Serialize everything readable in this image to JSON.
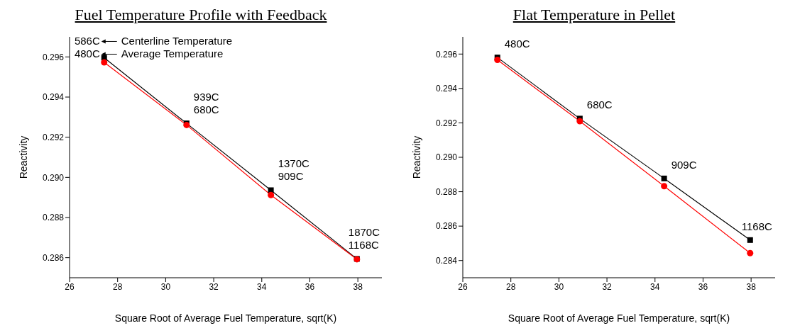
{
  "chart_data": [
    {
      "type": "line",
      "title": "Fuel Temperature Profile with Feedback",
      "xlabel": "Square Root of Average Fuel Temperature, sqrt(K)",
      "ylabel": "Reactivity",
      "x": [
        27.44,
        30.87,
        34.38,
        37.96
      ],
      "series": [
        {
          "color": "#000000",
          "marker": "square",
          "values": [
            0.29596,
            0.29269,
            0.28936,
            0.28594
          ]
        },
        {
          "color": "#ff0000",
          "marker": "circle",
          "values": [
            0.29573,
            0.29261,
            0.28912,
            0.28592
          ]
        }
      ],
      "xlim": [
        26,
        39
      ],
      "xticks": [
        26,
        28,
        30,
        32,
        34,
        36,
        38
      ],
      "ylim": [
        0.285,
        0.297
      ],
      "yticks": [
        0.286,
        0.288,
        {
          "value": 0.29,
          "label": "0.290"
        },
        0.292,
        0.294,
        0.296
      ],
      "grid": false,
      "line_style": "solid",
      "annotations": [
        {
          "text": "586C",
          "x": 27.44,
          "y": 0.29596
        },
        {
          "text": "480C",
          "x": 27.44,
          "y": 0.29596
        },
        "Centerline Temperature",
        "Average Temperature",
        {
          "text": "939C",
          "x": 30.87,
          "y": 0.29269
        },
        {
          "text": "680C",
          "x": 30.87,
          "y": 0.29269
        },
        {
          "text": "1370C",
          "x": 34.38,
          "y": 0.28936
        },
        {
          "text": "909C",
          "x": 34.38,
          "y": 0.28936
        },
        {
          "text": "1870C",
          "x": 37.96,
          "y": 0.28594
        },
        {
          "text": "1168C",
          "x": 37.96,
          "y": 0.28594
        }
      ]
    },
    {
      "type": "line",
      "title": "Flat Temperature in Pellet",
      "xlabel": "Square Root of Average Fuel Temperature, sqrt(K)",
      "ylabel": "Reactivity",
      "x": [
        27.44,
        30.87,
        34.38,
        37.96
      ],
      "series": [
        {
          "color": "#000000",
          "marker": "square",
          "values": [
            0.2958,
            0.29225,
            0.28877,
            0.28519
          ]
        },
        {
          "color": "#ff0000",
          "marker": "circle",
          "values": [
            0.29566,
            0.2921,
            0.28832,
            0.28443
          ]
        }
      ],
      "xlim": [
        26,
        39
      ],
      "xticks": [
        26,
        28,
        30,
        32,
        34,
        36,
        38
      ],
      "ylim": [
        0.283,
        0.297
      ],
      "yticks": [
        0.284,
        0.286,
        0.288,
        {
          "value": 0.29,
          "label": "0.290"
        },
        0.292,
        0.294,
        0.296
      ],
      "grid": false,
      "line_style": "solid",
      "annotations": [
        {
          "text": "480C",
          "x": 27.44,
          "y": 0.2958
        },
        {
          "text": "680C",
          "x": 30.87,
          "y": 0.29225
        },
        {
          "text": "909C",
          "x": 34.38,
          "y": 0.28877
        },
        {
          "text": "1168C",
          "x": 37.96,
          "y": 0.28519
        }
      ]
    }
  ]
}
